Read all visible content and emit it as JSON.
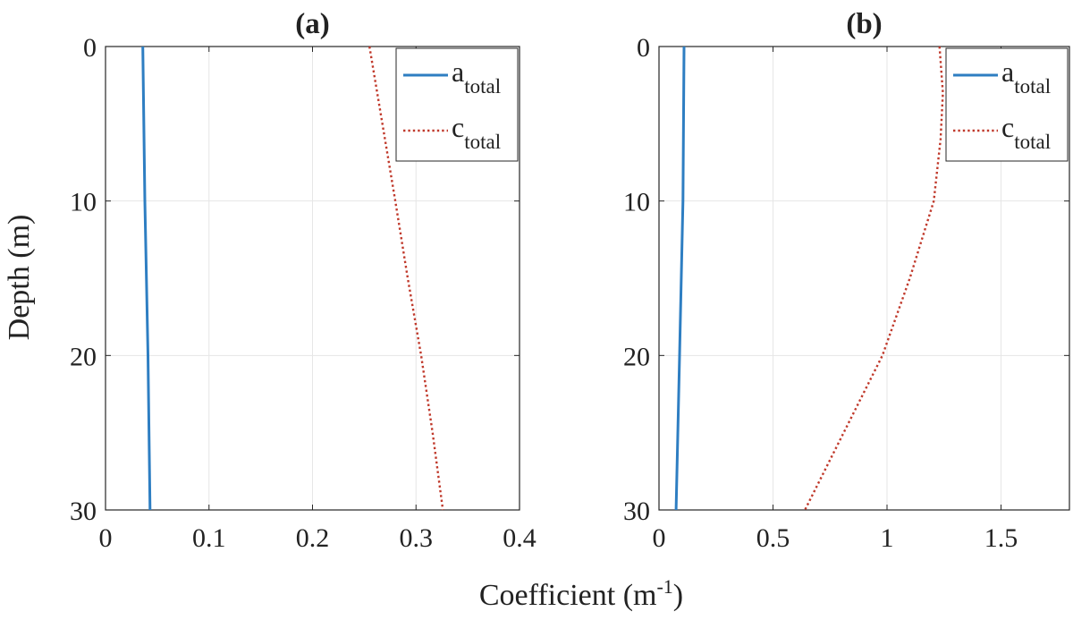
{
  "figure": {
    "xlabel_main": "Coefficient (m",
    "xlabel_sup": "-1",
    "xlabel_close": ")",
    "ylabel": "Depth (m)"
  },
  "chart_data": [
    {
      "type": "line",
      "title": "(a)",
      "xlim": [
        0,
        0.4
      ],
      "ylim": [
        0,
        30
      ],
      "y_reversed": true,
      "grid": true,
      "xticks": [
        0,
        0.1,
        0.2,
        0.3,
        0.4
      ],
      "xtick_labels": [
        "0",
        "0.1",
        "0.2",
        "0.3",
        "0.4"
      ],
      "yticks": [
        0,
        10,
        20,
        30
      ],
      "ytick_labels": [
        "0",
        "10",
        "20",
        "30"
      ],
      "legend_location": "top-right",
      "series": [
        {
          "name": "a_total",
          "label_main": "a",
          "label_sub": "total",
          "style": "solid",
          "color": "#2e7ec2",
          "points": [
            [
              0.036,
              0
            ],
            [
              0.038,
              10
            ],
            [
              0.041,
              20
            ],
            [
              0.043,
              30
            ]
          ]
        },
        {
          "name": "c_total",
          "label_main": "c",
          "label_sub": "total",
          "style": "dotted",
          "color": "#c0392b",
          "points": [
            [
              0.255,
              0
            ],
            [
              0.28,
              10
            ],
            [
              0.292,
              15
            ],
            [
              0.305,
              20
            ],
            [
              0.316,
              25
            ],
            [
              0.326,
              30
            ]
          ]
        }
      ]
    },
    {
      "type": "line",
      "title": "(b)",
      "xlim": [
        0,
        1.8
      ],
      "ylim": [
        0,
        30
      ],
      "y_reversed": true,
      "grid": true,
      "xticks": [
        0,
        0.5,
        1,
        1.5
      ],
      "xtick_labels": [
        "0",
        "0.5",
        "1",
        "1.5"
      ],
      "yticks": [
        0,
        10,
        20,
        30
      ],
      "ytick_labels": [
        "0",
        "10",
        "20",
        "30"
      ],
      "legend_location": "top-right",
      "series": [
        {
          "name": "a_total",
          "label_main": "a",
          "label_sub": "total",
          "style": "solid",
          "color": "#2e7ec2",
          "points": [
            [
              0.11,
              0
            ],
            [
              0.105,
              10
            ],
            [
              0.09,
              20
            ],
            [
              0.075,
              30
            ]
          ]
        },
        {
          "name": "c_total",
          "label_main": "c",
          "label_sub": "total",
          "style": "dotted",
          "color": "#c0392b",
          "points": [
            [
              1.23,
              0
            ],
            [
              1.245,
              3
            ],
            [
              1.235,
              6
            ],
            [
              1.205,
              10
            ],
            [
              1.1,
              15
            ],
            [
              0.98,
              20
            ],
            [
              0.81,
              25
            ],
            [
              0.64,
              30
            ]
          ]
        }
      ]
    }
  ]
}
